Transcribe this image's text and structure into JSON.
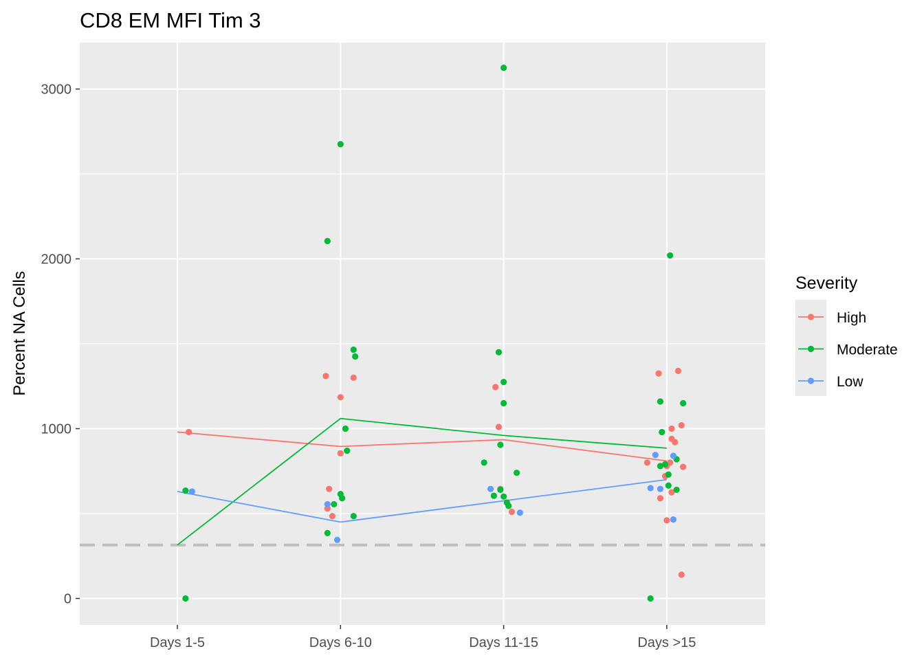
{
  "chart_data": {
    "type": "scatter",
    "title": "CD8 EM MFI Tim 3",
    "xlabel": "",
    "ylabel": "Percent NA Cells",
    "categories": [
      "Days 1-5",
      "Days 6-10",
      "Days 11-15",
      "Days >15"
    ],
    "yticks": [
      0,
      1000,
      2000,
      3000
    ],
    "ylim": [
      -155,
      3265
    ],
    "grid": true,
    "reference_line": {
      "y": 315,
      "style": "dashed",
      "color": "#bebebe"
    },
    "legend": {
      "title": "Severity",
      "position": "right"
    },
    "series": [
      {
        "name": "High",
        "color": "#f8766d",
        "trend": [
          980,
          895,
          935,
          810
        ],
        "points": [
          {
            "x": 0.07,
            "y": 980
          },
          {
            "x": 0.91,
            "y": 1310
          },
          {
            "x": 1.0,
            "y": 1185
          },
          {
            "x": 1.08,
            "y": 1300
          },
          {
            "x": 1.0,
            "y": 855
          },
          {
            "x": 0.93,
            "y": 645
          },
          {
            "x": 0.92,
            "y": 530
          },
          {
            "x": 0.95,
            "y": 485
          },
          {
            "x": 1.95,
            "y": 1245
          },
          {
            "x": 1.97,
            "y": 1010
          },
          {
            "x": 1.98,
            "y": 645
          },
          {
            "x": 2.05,
            "y": 510
          },
          {
            "x": 2.88,
            "y": 800
          },
          {
            "x": 2.95,
            "y": 1325
          },
          {
            "x": 3.07,
            "y": 1340
          },
          {
            "x": 3.03,
            "y": 1000
          },
          {
            "x": 3.03,
            "y": 940
          },
          {
            "x": 3.05,
            "y": 920
          },
          {
            "x": 3.09,
            "y": 1020
          },
          {
            "x": 3.1,
            "y": 775
          },
          {
            "x": 2.99,
            "y": 720
          },
          {
            "x": 3.0,
            "y": 780
          },
          {
            "x": 3.02,
            "y": 800
          },
          {
            "x": 3.03,
            "y": 625
          },
          {
            "x": 2.96,
            "y": 590
          },
          {
            "x": 3.0,
            "y": 460
          },
          {
            "x": 3.09,
            "y": 140
          }
        ]
      },
      {
        "name": "Moderate",
        "color": "#00ba38",
        "trend": [
          315,
          1060,
          960,
          885
        ],
        "points": [
          {
            "x": 0.05,
            "y": 0
          },
          {
            "x": 0.05,
            "y": 635
          },
          {
            "x": 0.92,
            "y": 2105
          },
          {
            "x": 1.0,
            "y": 2675
          },
          {
            "x": 1.08,
            "y": 1465
          },
          {
            "x": 1.09,
            "y": 1425
          },
          {
            "x": 1.03,
            "y": 1000
          },
          {
            "x": 1.04,
            "y": 870
          },
          {
            "x": 1.0,
            "y": 615
          },
          {
            "x": 1.01,
            "y": 590
          },
          {
            "x": 0.96,
            "y": 555
          },
          {
            "x": 1.08,
            "y": 485
          },
          {
            "x": 0.92,
            "y": 385
          },
          {
            "x": 2.0,
            "y": 3125
          },
          {
            "x": 1.97,
            "y": 1450
          },
          {
            "x": 2.0,
            "y": 1275
          },
          {
            "x": 2.0,
            "y": 1150
          },
          {
            "x": 1.88,
            "y": 800
          },
          {
            "x": 1.98,
            "y": 905
          },
          {
            "x": 2.08,
            "y": 740
          },
          {
            "x": 1.94,
            "y": 605
          },
          {
            "x": 1.98,
            "y": 640
          },
          {
            "x": 2.0,
            "y": 600
          },
          {
            "x": 2.02,
            "y": 565
          },
          {
            "x": 2.03,
            "y": 545
          },
          {
            "x": 3.02,
            "y": 2020
          },
          {
            "x": 2.96,
            "y": 1160
          },
          {
            "x": 3.1,
            "y": 1150
          },
          {
            "x": 2.97,
            "y": 980
          },
          {
            "x": 2.96,
            "y": 780
          },
          {
            "x": 2.99,
            "y": 790
          },
          {
            "x": 3.06,
            "y": 820
          },
          {
            "x": 3.01,
            "y": 730
          },
          {
            "x": 3.01,
            "y": 665
          },
          {
            "x": 3.06,
            "y": 640
          },
          {
            "x": 2.9,
            "y": 0
          }
        ]
      },
      {
        "name": "Low",
        "color": "#619cff",
        "trend": [
          630,
          450,
          575,
          700
        ],
        "points": [
          {
            "x": 0.09,
            "y": 630
          },
          {
            "x": 0.92,
            "y": 555
          },
          {
            "x": 0.98,
            "y": 345
          },
          {
            "x": 1.92,
            "y": 645
          },
          {
            "x": 2.1,
            "y": 505
          },
          {
            "x": 2.93,
            "y": 845
          },
          {
            "x": 3.04,
            "y": 840
          },
          {
            "x": 2.9,
            "y": 650
          },
          {
            "x": 2.96,
            "y": 645
          },
          {
            "x": 3.04,
            "y": 465
          }
        ]
      }
    ]
  }
}
